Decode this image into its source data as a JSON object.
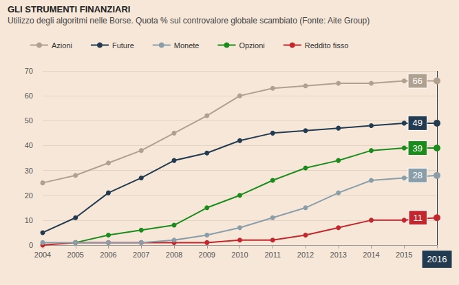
{
  "chart_data": {
    "type": "line",
    "title": "GLI STRUMENTI FINANZIARI",
    "subtitle": "Utilizzo degli algoritmi nelle Borse. Quota % sul controvalore globale scambiato (Fonte: Aite Group)",
    "categories": [
      "2004",
      "2005",
      "2006",
      "2007",
      "2008",
      "2009",
      "2010",
      "2011",
      "2012",
      "2013",
      "2014",
      "2015",
      "2016"
    ],
    "series": [
      {
        "name": "Azioni",
        "color": "#b0a08f",
        "values": [
          25,
          28,
          33,
          38,
          45,
          52,
          60,
          63,
          64,
          65,
          65,
          66,
          66
        ]
      },
      {
        "name": "Future",
        "color": "#233b50",
        "values": [
          5,
          11,
          21,
          27,
          34,
          37,
          42,
          45,
          46,
          47,
          48,
          49,
          49
        ]
      },
      {
        "name": "Monete",
        "color": "#8a9ea9",
        "values": [
          1,
          1,
          1,
          1,
          2,
          4,
          7,
          11,
          15,
          21,
          26,
          27,
          28
        ]
      },
      {
        "name": "Opzioni",
        "color": "#1b8c1b",
        "values": [
          null,
          1,
          4,
          6,
          8,
          15,
          20,
          26,
          31,
          34,
          38,
          39,
          39
        ]
      },
      {
        "name": "Reddito fisso",
        "color": "#c1272d",
        "values": [
          0,
          1,
          1,
          1,
          1,
          1,
          2,
          2,
          4,
          7,
          10,
          10,
          11
        ]
      }
    ],
    "ylim": [
      0,
      70
    ],
    "yticks": [
      0,
      10,
      20,
      30,
      40,
      50,
      60,
      70
    ],
    "grid": true,
    "legend": "top-left",
    "marker": "circle",
    "data_labels": true
  }
}
